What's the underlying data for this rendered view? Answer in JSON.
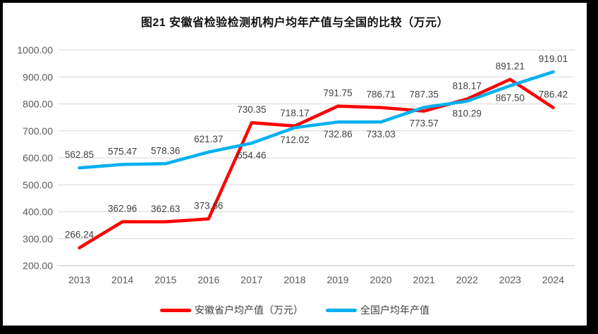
{
  "chart_data": {
    "type": "line",
    "title": "图21 安徽省检验检测机构户均年产值与全国的比较（万元）",
    "categories": [
      "2013",
      "2014",
      "2015",
      "2016",
      "2017",
      "2018",
      "2019",
      "2020",
      "2021",
      "2022",
      "2023",
      "2024"
    ],
    "series": [
      {
        "name": "安徽省户均产值（万元）",
        "color": "#ff0000",
        "values": [
          266.24,
          362.96,
          362.63,
          373.66,
          730.35,
          718.17,
          791.75,
          786.71,
          773.57,
          818.17,
          891.21,
          786.42
        ],
        "labels": [
          "266.24",
          "362.96",
          "362.63",
          "373.66",
          "730.35",
          "718.17",
          "791.75",
          "786.71",
          "773.57",
          "818.17",
          "891.21",
          "786.42"
        ],
        "label_positions": [
          "above",
          "above",
          "above",
          "above",
          "above",
          "above",
          "above",
          "above",
          "below",
          "above",
          "above",
          "above"
        ]
      },
      {
        "name": "全国户均年产值",
        "color": "#00b0f0",
        "values": [
          562.85,
          575.47,
          578.36,
          621.37,
          654.46,
          712.02,
          732.86,
          733.03,
          787.35,
          810.29,
          867.5,
          919.01
        ],
        "labels": [
          "562.85",
          "575.47",
          "578.36",
          "621.37",
          "654.46",
          "712.02",
          "732.86",
          "733.03",
          "787.35",
          "810.29",
          "867.50",
          "919.01"
        ],
        "label_positions": [
          "above",
          "above",
          "above",
          "above",
          "below",
          "below",
          "below",
          "below",
          "above",
          "below",
          "below",
          "above"
        ]
      }
    ],
    "ylim": [
      200,
      1000
    ],
    "ytick_step": 100,
    "yticks": [
      "200.00",
      "300.00",
      "400.00",
      "500.00",
      "600.00",
      "700.00",
      "800.00",
      "900.00",
      "1000.00"
    ],
    "grid": true,
    "legend_position": "bottom"
  },
  "style_colors": {
    "gridline": "#d9d9d9",
    "axis_line": "#bfbfbf",
    "tick_text": "#595959",
    "data_label_text": "#404040",
    "frame_border": "#000000"
  }
}
